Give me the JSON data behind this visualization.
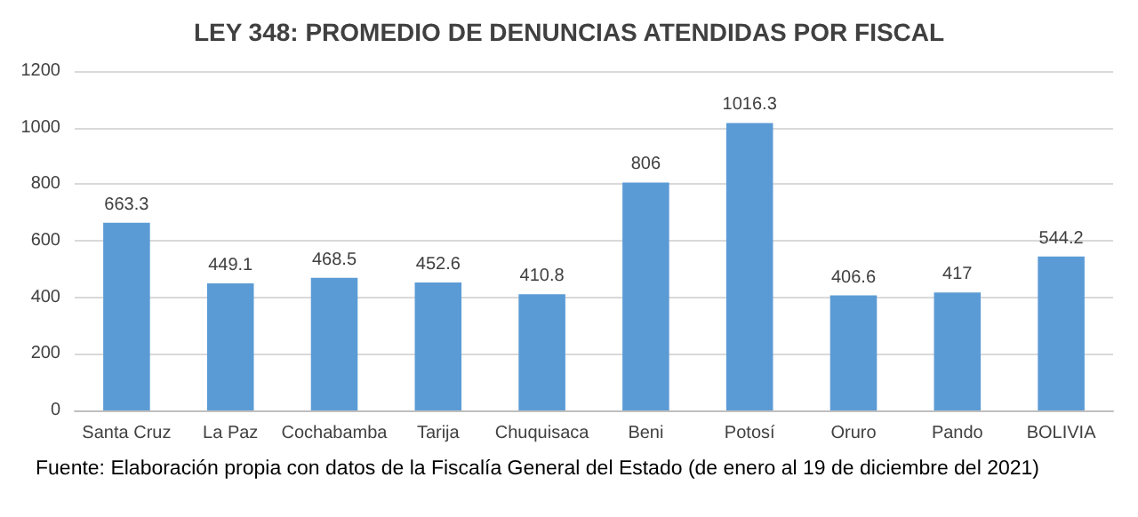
{
  "chart_data": {
    "type": "bar",
    "title": "LEY 348: PROMEDIO DE DENUNCIAS ATENDIDAS POR FISCAL",
    "categories": [
      "Santa Cruz",
      "La Paz",
      "Cochabamba",
      "Tarija",
      "Chuquisaca",
      "Beni",
      "Potosí",
      "Oruro",
      "Pando",
      "BOLIVIA"
    ],
    "values": [
      663.3,
      449.1,
      468.5,
      452.6,
      410.8,
      806,
      1016.3,
      406.6,
      417,
      544.2
    ],
    "color": "#5b9bd5",
    "ylim": [
      0,
      1200
    ],
    "yticks": [
      0,
      200,
      400,
      600,
      800,
      1000,
      1200
    ],
    "grid": "y",
    "data_labels": true,
    "annotations": [
      "Fuente: Elaboración propia con datos de la Fiscalía General del Estado (de enero al 19 de diciembre del 2021)"
    ]
  }
}
